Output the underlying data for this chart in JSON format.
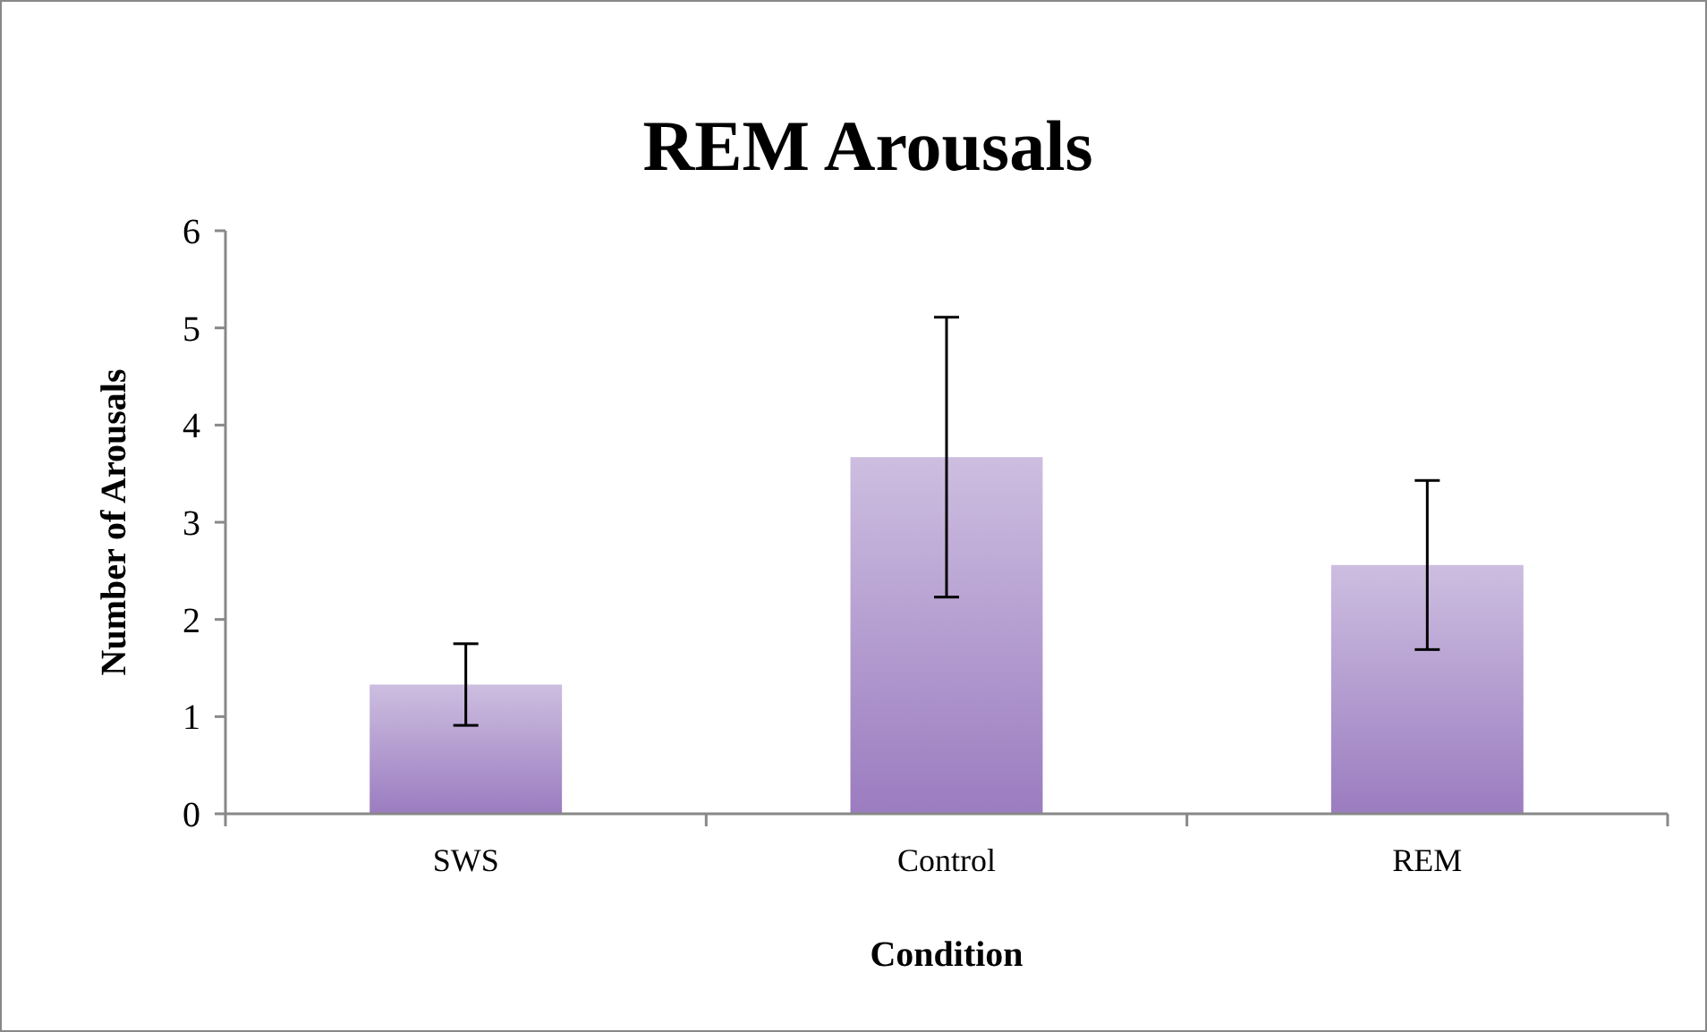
{
  "chart_data": {
    "type": "bar",
    "title": "REM Arousals",
    "xlabel": "Condition",
    "ylabel": "Number of Arousals",
    "categories": [
      "SWS",
      "Control",
      "REM"
    ],
    "values": [
      1.33,
      3.67,
      2.56
    ],
    "errors": [
      0.42,
      1.44,
      0.87
    ],
    "color": "#9b7cc0",
    "ylim": [
      0,
      6
    ],
    "yticks": [
      0,
      1,
      2,
      3,
      4,
      5,
      6
    ],
    "grid": false
  }
}
